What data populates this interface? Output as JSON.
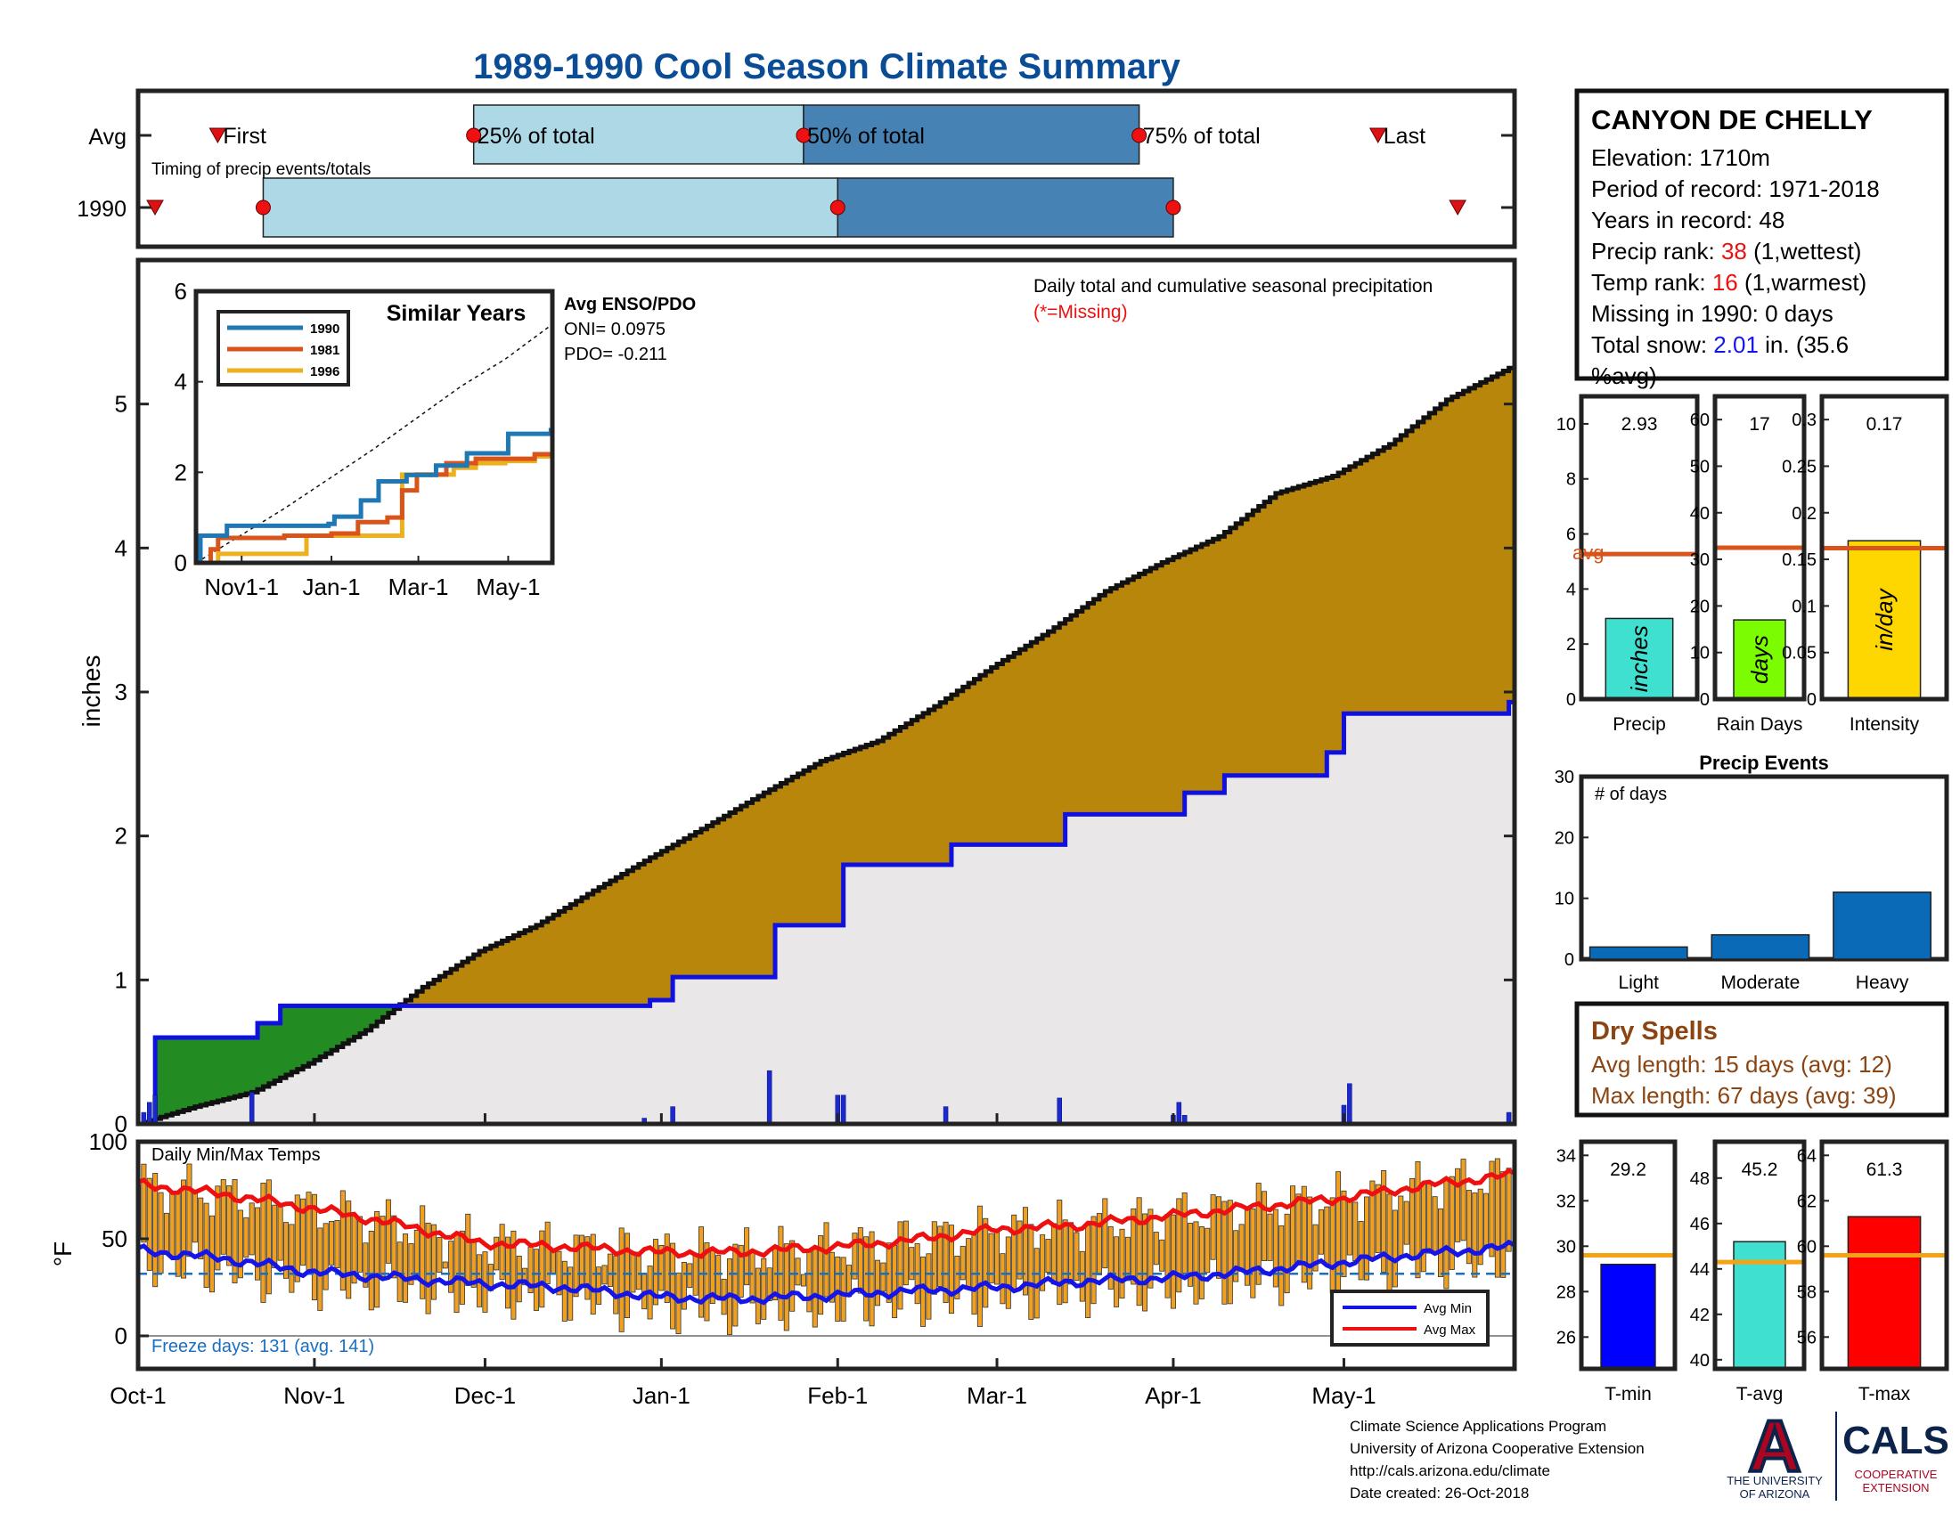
{
  "title": "1989-1990 Cool Season Climate Summary",
  "timing": {
    "avg_label": "Avg",
    "year_label": "1990",
    "caption": "Timing of precip events/totals",
    "first": "First",
    "p25": "25% of total",
    "p50": "50% of total",
    "p75": "75% of total",
    "last": "Last",
    "avg_days": {
      "first": 14,
      "p25": 59,
      "p50": 117,
      "p75": 176,
      "last": 218
    },
    "year_days": {
      "first": -5,
      "p25": 22,
      "p50": 123,
      "p75": 182,
      "last": 232
    }
  },
  "station": {
    "name": "CANYON DE CHELLY",
    "elevation": "Elevation: 1710m",
    "period": "Period of record: 1971-2018",
    "years": "Years in record: 48",
    "precip_rank_pre": "Precip rank: ",
    "precip_rank_val": "38",
    "precip_rank_post": " (1,wettest)",
    "temp_rank_pre": "Temp rank: ",
    "temp_rank_val": "16",
    "temp_rank_post": " (1,warmest)",
    "missing": "Missing in 1990: 0 days",
    "snow_pre": "Total snow: ",
    "snow_val": "2.01",
    "snow_post": " in. (35.6",
    "snow_line2": "%avg)"
  },
  "colors": {
    "title": "#0b4c97",
    "avg_area": "#b8860b",
    "early_green": "#228b22",
    "year_line": "#1010e0",
    "light_bar": "#add8e6",
    "dark_bar": "#4682b4",
    "orange_line": "#d9541a",
    "temp_bar": "#f0a020",
    "avg_min": "#1515e8",
    "avg_max": "#ee1010",
    "dry_text": "#8b4513",
    "rank_red": "#ee1010",
    "snow_blue": "#1515e8"
  },
  "chart_data": [
    {
      "type": "area",
      "name": "main-precip",
      "annotation": "Daily total and cumulative seasonal precipitation",
      "missing_note": "(*=Missing)",
      "ylabel": "inches",
      "ylim": [
        0,
        6
      ],
      "yticks": [
        0,
        1,
        2,
        3,
        4,
        5
      ],
      "xlim_days": [
        0,
        242
      ],
      "avg_cumulative": {
        "days": [
          0,
          10,
          20,
          30,
          40,
          50,
          60,
          70,
          80,
          90,
          100,
          110,
          120,
          130,
          140,
          150,
          160,
          170,
          180,
          190,
          200,
          210,
          220,
          230,
          235,
          242
        ],
        "values": [
          0.0,
          0.12,
          0.22,
          0.42,
          0.65,
          0.95,
          1.2,
          1.38,
          1.62,
          1.85,
          2.07,
          2.3,
          2.52,
          2.66,
          2.9,
          3.17,
          3.42,
          3.7,
          3.9,
          4.08,
          4.38,
          4.5,
          4.72,
          5.03,
          5.13,
          5.27
        ]
      },
      "year_cumulative": {
        "days": [
          0,
          2,
          3,
          20,
          21,
          25,
          89,
          90,
          94,
          111,
          112,
          123,
          124,
          142,
          143,
          162,
          163,
          183,
          184,
          190,
          191,
          208,
          209,
          211,
          212,
          240,
          241,
          242
        ],
        "values": [
          0.0,
          0.01,
          0.6,
          0.6,
          0.7,
          0.82,
          0.82,
          0.86,
          1.02,
          1.02,
          1.38,
          1.38,
          1.8,
          1.8,
          1.94,
          1.94,
          2.15,
          2.15,
          2.3,
          2.3,
          2.42,
          2.42,
          2.58,
          2.58,
          2.85,
          2.85,
          2.93,
          2.93
        ]
      },
      "daily_bars": {
        "days": [
          1,
          2,
          3,
          20,
          89,
          94,
          111,
          123,
          124,
          142,
          162,
          182,
          183,
          184,
          212,
          213,
          241
        ],
        "values": [
          0.08,
          0.15,
          0.2,
          0.22,
          0.04,
          0.12,
          0.37,
          0.2,
          0.2,
          0.12,
          0.18,
          0.06,
          0.15,
          0.06,
          0.13,
          0.28,
          0.08
        ]
      },
      "xticks": [
        "Oct-1",
        "Nov-1",
        "Dec-1",
        "Jan-1",
        "Feb-1",
        "Mar-1",
        "Apr-1",
        "May-1"
      ],
      "xtick_days": [
        0,
        31,
        61,
        92,
        123,
        151,
        182,
        212
      ]
    },
    {
      "type": "line",
      "name": "similar-years",
      "title": "Similar Years",
      "ylim": [
        0,
        6
      ],
      "yticks": [
        0,
        2,
        4,
        6
      ],
      "xticks": [
        "Nov1-1",
        "Jan-1",
        "Mar-1",
        "May-1"
      ],
      "xtick_days": [
        31,
        92,
        151,
        212
      ],
      "xlim_days": [
        0,
        242
      ],
      "series": [
        {
          "name": "1990",
          "color": "#1f77b4",
          "days": [
            0,
            3,
            21,
            90,
            94,
            112,
            124,
            143,
            163,
            184,
            212,
            241,
            242
          ],
          "values": [
            0,
            0.6,
            0.82,
            0.86,
            1.02,
            1.38,
            1.8,
            1.94,
            2.15,
            2.42,
            2.85,
            2.93,
            2.93
          ]
        },
        {
          "name": "1981",
          "color": "#d9541a",
          "days": [
            0,
            10,
            15,
            60,
            92,
            110,
            130,
            140,
            150,
            170,
            190,
            230,
            242
          ],
          "values": [
            0,
            0.3,
            0.55,
            0.6,
            0.65,
            0.9,
            1.0,
            1.6,
            1.95,
            2.2,
            2.3,
            2.4,
            2.75
          ]
        },
        {
          "name": "1996",
          "color": "#edb120",
          "days": [
            0,
            15,
            75,
            130,
            140,
            175,
            190,
            210,
            230,
            242
          ],
          "values": [
            0,
            0.2,
            0.6,
            0.6,
            1.95,
            2.1,
            2.2,
            2.25,
            2.35,
            2.55
          ]
        }
      ],
      "avg_dashed": {
        "days": [
          0,
          30,
          60,
          90,
          120,
          150,
          180,
          210,
          242
        ],
        "values": [
          0,
          0.6,
          1.2,
          1.85,
          2.5,
          3.2,
          3.9,
          4.5,
          5.27
        ]
      },
      "enso_title": "Avg ENSO/PDO",
      "oni": "ONI= 0.0975",
      "pdo": "PDO= -0.211"
    },
    {
      "type": "bar",
      "name": "precip-total",
      "categories": [
        "Precip"
      ],
      "values": [
        2.93
      ],
      "value_label": "2.93",
      "bar_text": "inches",
      "bar_color": "#40e0d0",
      "avg": 5.27,
      "avg_label": "avg",
      "ylim": [
        0,
        11
      ],
      "yticks": [
        0,
        2,
        4,
        6,
        8,
        10
      ]
    },
    {
      "type": "bar",
      "name": "rain-days",
      "categories": [
        "Rain Days"
      ],
      "values": [
        17
      ],
      "value_label": "17",
      "bar_text": "days",
      "bar_color": "#7cfc00",
      "avg": 32.5,
      "ylim": [
        0,
        65
      ],
      "yticks": [
        0,
        10,
        20,
        30,
        40,
        50,
        60
      ]
    },
    {
      "type": "bar",
      "name": "intensity",
      "categories": [
        "Intensity"
      ],
      "values": [
        0.17
      ],
      "value_label": "0.17",
      "bar_text": "in/day",
      "bar_color": "#ffd700",
      "avg": 0.162,
      "ylim": [
        0,
        0.325
      ],
      "yticks": [
        0,
        0.05,
        0.1,
        0.15,
        0.2,
        0.25,
        0.3
      ],
      "ytick_labels": [
        "0",
        "0.05",
        "0.1",
        "0.15",
        "0.2",
        "0.25",
        "0.3"
      ]
    },
    {
      "type": "bar",
      "name": "precip-events",
      "title": "Precip Events",
      "annotation": "# of days",
      "categories": [
        "Light",
        "Moderate",
        "Heavy"
      ],
      "values": [
        2,
        4,
        11
      ],
      "bar_color": "#0a6ab8",
      "ylim": [
        0,
        30
      ],
      "yticks": [
        0,
        10,
        20,
        30
      ]
    },
    {
      "type": "bar",
      "name": "daily-temps",
      "annotation": "Daily Min/Max Temps",
      "ylabel": "°F",
      "ylim": [
        0,
        100
      ],
      "yticks": [
        0,
        50,
        100
      ],
      "freeze_line": 32,
      "freeze_text": "Freeze days: 131 (avg. 141)",
      "legend": [
        "Avg Min",
        "Avg Max"
      ],
      "avg_min": {
        "days": [
          0,
          15,
          30,
          45,
          60,
          75,
          92,
          105,
          123,
          135,
          151,
          165,
          182,
          195,
          212,
          225,
          242
        ],
        "values": [
          44,
          40,
          33,
          30,
          27,
          25,
          20,
          19,
          21,
          23,
          25,
          28,
          30,
          33,
          38,
          42,
          46
        ]
      },
      "avg_max": {
        "days": [
          0,
          15,
          30,
          45,
          60,
          75,
          92,
          105,
          123,
          135,
          151,
          165,
          182,
          195,
          212,
          225,
          242
        ],
        "values": [
          78,
          73,
          66,
          58,
          48,
          46,
          43,
          43,
          46,
          49,
          55,
          57,
          62,
          66,
          71,
          77,
          83
        ]
      }
    },
    {
      "type": "bar",
      "name": "tmin",
      "categories": [
        "T-min"
      ],
      "values": [
        29.2
      ],
      "value_label": "29.2",
      "bar_color": "#0000ff",
      "avg": 29.6,
      "ylim": [
        24.6,
        34.6
      ],
      "yticks": [
        26,
        28,
        30,
        32,
        34
      ]
    },
    {
      "type": "bar",
      "name": "tavg",
      "categories": [
        "T-avg"
      ],
      "values": [
        45.2
      ],
      "value_label": "45.2",
      "bar_color": "#40e0d0",
      "avg": 44.3,
      "ylim": [
        39.6,
        49.6
      ],
      "yticks": [
        40,
        42,
        44,
        46,
        48
      ]
    },
    {
      "type": "bar",
      "name": "tmax",
      "categories": [
        "T-max"
      ],
      "values": [
        61.3
      ],
      "value_label": "61.3",
      "bar_color": "#ff0000",
      "avg": 59.6,
      "ylim": [
        54.6,
        64.6
      ],
      "yticks": [
        56,
        58,
        60,
        62,
        64
      ]
    }
  ],
  "dry_spells": {
    "title": "Dry Spells",
    "avg_length": "Avg length: 15 days (avg: 12)",
    "max_length": "Max length: 67 days (avg: 39)"
  },
  "footer": {
    "line1": "Climate Science Applications Program",
    "line2": "University of Arizona Cooperative Extension",
    "line3": "http://cals.arizona.edu/climate",
    "line4": " Date created: 26-Oct-2018"
  },
  "logo": {
    "letter": "A",
    "univ1": "THE UNIVERSITY",
    "univ2": "OF ARIZONA",
    "cals": "CALS",
    "coop1": "COOPERATIVE",
    "coop2": "EXTENSION"
  }
}
